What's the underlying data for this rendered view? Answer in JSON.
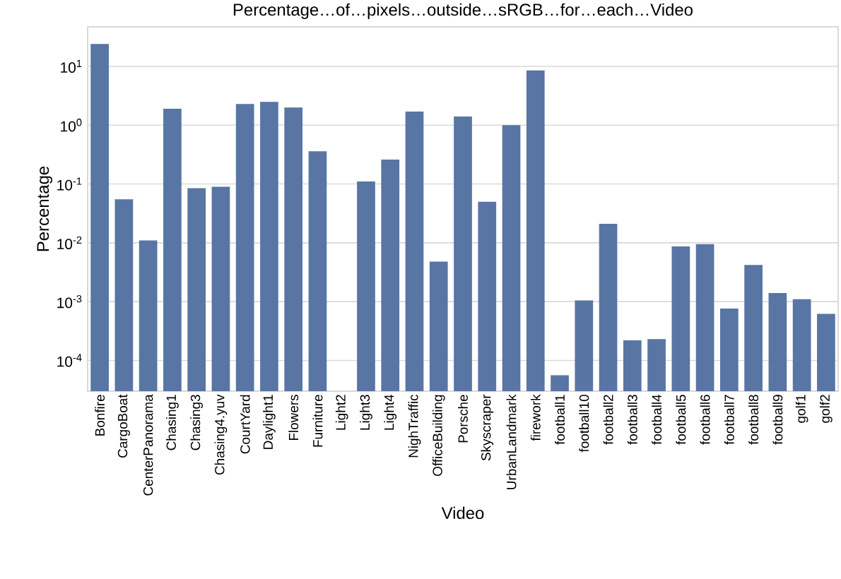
{
  "chart_data": {
    "type": "bar",
    "title": "Percentage…of…pixels…outside…sRGB…for…each…Video",
    "xlabel": "Video",
    "ylabel": "Percentage",
    "categories": [
      "Bonfire",
      "CargoBoat",
      "CenterPanorama",
      "Chasing1",
      "Chasing3",
      "Chasing4.yuv",
      "CourtYard",
      "Daylight1",
      "Flowers",
      "Furniture",
      "Light2",
      "Light3",
      "Light4",
      "NighTraffic",
      "OfficeBuilding",
      "Porsche",
      "Skyscraper",
      "UrbanLandmark",
      "firework",
      "football1",
      "football10",
      "football2",
      "football3",
      "football4",
      "football5",
      "football6",
      "football7",
      "football8",
      "football9",
      "golf1",
      "golf2"
    ],
    "values": [
      24,
      0.055,
      0.011,
      1.9,
      0.085,
      0.09,
      2.3,
      2.5,
      2.0,
      0.36,
      null,
      0.11,
      0.26,
      1.7,
      0.0048,
      1.4,
      0.05,
      1.0,
      8.5,
      5.6e-05,
      0.00105,
      0.021,
      0.00022,
      0.00023,
      0.0087,
      0.0095,
      0.00076,
      0.0042,
      0.0014,
      0.0011,
      0.00062
    ],
    "color": "#5875a4",
    "log": "y",
    "ylim": [
      3e-05,
      47
    ],
    "yticks": [
      {
        "value": 0.0001,
        "label": "10$^{-4}$"
      },
      {
        "value": 0.001,
        "label": "10$^{-3}$"
      },
      {
        "value": 0.01,
        "label": "10$^{-2}$"
      },
      {
        "value": 0.1,
        "label": "10$^{-1}$"
      },
      {
        "value": 1,
        "label": "10$^{0}$"
      },
      {
        "value": 10,
        "label": "10$^{1}$"
      }
    ],
    "grid": "y"
  }
}
